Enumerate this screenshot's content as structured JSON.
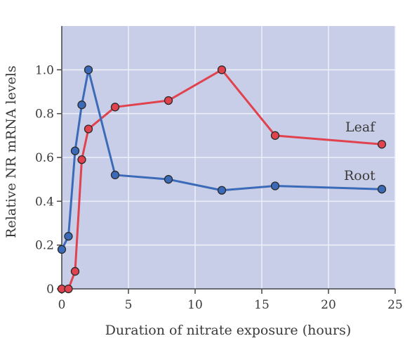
{
  "chart_data": {
    "type": "line",
    "title": "",
    "xlabel": "Duration of nitrate exposure (hours)",
    "ylabel": "Relative NR mRNA levels",
    "xlim": [
      0,
      25
    ],
    "ylim": [
      0,
      1.2
    ],
    "xticks": [
      0,
      5,
      10,
      15,
      20,
      25
    ],
    "xtick_labels": [
      "0",
      "5",
      "10",
      "15",
      "20",
      "25"
    ],
    "yticks": [
      0,
      0.2,
      0.4,
      0.6,
      0.8,
      1.0
    ],
    "ytick_labels": [
      "0",
      "0.2",
      "0.4",
      "0.6",
      "0.8",
      "1.0"
    ],
    "grid": true,
    "background_color": "#c9cee8",
    "grid_color": "#eef0fa",
    "series": [
      {
        "name": "Leaf",
        "color": "#e0424e",
        "x": [
          0,
          0.5,
          1,
          1.5,
          2,
          4,
          8,
          12,
          16,
          24
        ],
        "y": [
          0,
          0,
          0.08,
          0.59,
          0.73,
          0.83,
          0.86,
          1.0,
          0.7,
          0.66
        ]
      },
      {
        "name": "Root",
        "color": "#3b6bb8",
        "x": [
          0,
          0.5,
          1,
          1.5,
          2,
          4,
          8,
          12,
          16,
          24
        ],
        "y": [
          0.18,
          0.24,
          0.63,
          0.84,
          1.0,
          0.52,
          0.5,
          0.45,
          0.47,
          0.455
        ]
      }
    ]
  }
}
